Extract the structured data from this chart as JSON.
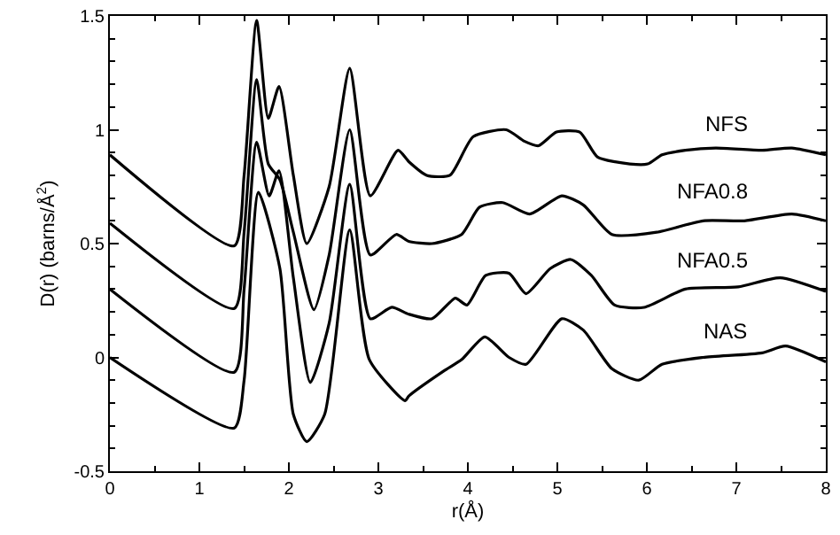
{
  "chart_data": {
    "type": "line",
    "xlabel": "r(Å)",
    "ylabel": "D(r) (barns/Å$^{2}$)",
    "xlim": [
      0,
      8
    ],
    "xticks": [
      0,
      1,
      2,
      3,
      4,
      5,
      6,
      7,
      8
    ],
    "ylim": [
      -0.5,
      1.5
    ],
    "yticks": [
      -0.5,
      0,
      0.5,
      1,
      1.5
    ],
    "grid": false,
    "legend": false,
    "marker": "none",
    "line_style": "solid",
    "series": [
      {
        "name": "NFS",
        "color": "#000000",
        "x": [
          0,
          1.39,
          1.5,
          1.64,
          1.77,
          1.89,
          2.05,
          2.2,
          2.45,
          2.68,
          2.91,
          3.22,
          3.34,
          3.54,
          3.8,
          4.06,
          4.43,
          4.63,
          4.79,
          4.99,
          5.25,
          5.45,
          5.81,
          6.01,
          6.17,
          6.43,
          6.77,
          7.29,
          7.62,
          8
        ],
        "values": [
          0.89,
          0.49,
          0.8,
          1.48,
          1.05,
          1.19,
          0.8,
          0.5,
          0.75,
          1.27,
          0.71,
          0.91,
          0.86,
          0.8,
          0.8,
          0.97,
          1.0,
          0.95,
          0.93,
          0.99,
          0.99,
          0.88,
          0.85,
          0.85,
          0.89,
          0.91,
          0.92,
          0.91,
          0.92,
          0.89
        ]
      },
      {
        "name": "NFA0.8",
        "color": "#000000",
        "x": [
          0,
          1.39,
          1.5,
          1.64,
          1.77,
          1.9,
          2.05,
          2.28,
          2.45,
          2.68,
          2.91,
          3.2,
          3.34,
          3.6,
          3.93,
          4.13,
          4.39,
          4.69,
          5.05,
          5.29,
          5.61,
          6.11,
          6.63,
          7.09,
          7.62,
          8
        ],
        "values": [
          0.59,
          0.215,
          0.55,
          1.22,
          0.85,
          0.78,
          0.55,
          0.21,
          0.45,
          1.0,
          0.45,
          0.54,
          0.51,
          0.5,
          0.54,
          0.66,
          0.68,
          0.63,
          0.71,
          0.67,
          0.54,
          0.55,
          0.6,
          0.6,
          0.63,
          0.6
        ]
      },
      {
        "name": "NFA0.5",
        "color": "#000000",
        "x": [
          0,
          1.39,
          1.5,
          1.64,
          1.78,
          1.89,
          2.05,
          2.24,
          2.45,
          2.68,
          2.91,
          3.15,
          3.34,
          3.6,
          3.86,
          3.99,
          4.2,
          4.46,
          4.65,
          4.92,
          5.15,
          5.38,
          5.64,
          5.97,
          6.43,
          7.02,
          7.49,
          8
        ],
        "values": [
          0.3,
          -0.065,
          0.3,
          0.945,
          0.71,
          0.82,
          0.35,
          -0.11,
          0.15,
          0.76,
          0.17,
          0.22,
          0.19,
          0.17,
          0.26,
          0.23,
          0.36,
          0.37,
          0.28,
          0.39,
          0.43,
          0.36,
          0.23,
          0.22,
          0.3,
          0.31,
          0.35,
          0.29
        ]
      },
      {
        "name": "NAS",
        "color": "#000000",
        "x": [
          0,
          1.39,
          1.5,
          1.66,
          1.9,
          2.05,
          2.2,
          2.4,
          2.68,
          2.9,
          3.3,
          3.34,
          3.73,
          3.93,
          4.19,
          4.46,
          4.65,
          5.05,
          5.29,
          5.61,
          5.91,
          6.17,
          6.63,
          7.29,
          7.55,
          8
        ],
        "values": [
          0,
          -0.31,
          -0.1,
          0.725,
          0.39,
          -0.25,
          -0.37,
          -0.25,
          0.56,
          -0.01,
          -0.19,
          -0.17,
          -0.06,
          -0.01,
          0.09,
          0,
          -0.03,
          0.17,
          0.12,
          -0.05,
          -0.1,
          -0.03,
          0,
          0.02,
          0.05,
          -0.02
        ]
      }
    ]
  }
}
